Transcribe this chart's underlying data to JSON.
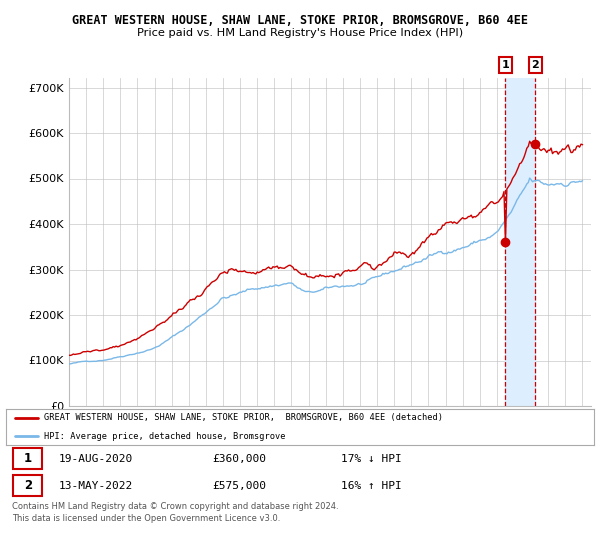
{
  "title": "GREAT WESTERN HOUSE, SHAW LANE, STOKE PRIOR, BROMSGROVE, B60 4EE",
  "subtitle": "Price paid vs. HM Land Registry's House Price Index (HPI)",
  "ylim": [
    0,
    720000
  ],
  "yticks": [
    0,
    100000,
    200000,
    300000,
    400000,
    500000,
    600000,
    700000
  ],
  "ytick_labels": [
    "£0",
    "£100K",
    "£200K",
    "£300K",
    "£400K",
    "£500K",
    "£600K",
    "£700K"
  ],
  "start_year": 1995,
  "end_year": 2025,
  "sale1_date": "19-AUG-2020",
  "sale1_price": 360000,
  "sale1_pct": "17%",
  "sale1_dir": "↓",
  "sale2_date": "13-MAY-2022",
  "sale2_price": 575000,
  "sale2_pct": "16%",
  "sale2_dir": "↑",
  "hpi_color": "#7ab8e8",
  "price_color": "#cc0000",
  "dot_color": "#cc0000",
  "shade_color": "#ddeeff",
  "vline_color": "#cc0000",
  "grid_color": "#bbbbbb",
  "bg_color": "#ffffff",
  "legend_label_price": "GREAT WESTERN HOUSE, SHAW LANE, STOKE PRIOR,  BROMSGROVE, B60 4EE (detached)",
  "legend_label_hpi": "HPI: Average price, detached house, Bromsgrove",
  "footer1": "Contains HM Land Registry data © Crown copyright and database right 2024.",
  "footer2": "This data is licensed under the Open Government Licence v3.0."
}
